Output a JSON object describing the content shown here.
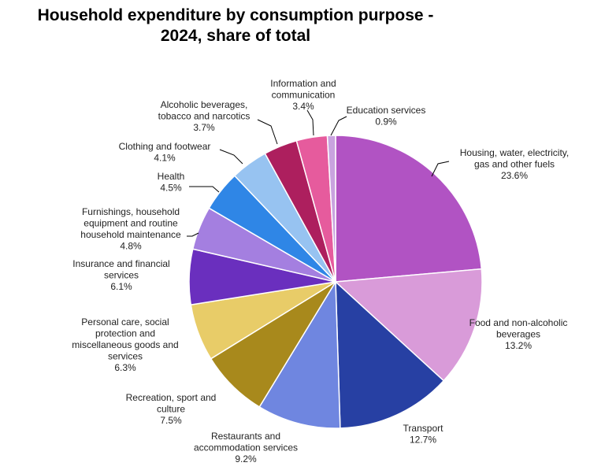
{
  "chart_data": {
    "type": "pie",
    "title": [
      "Household expenditure by consumption purpose -",
      "2024, share of total"
    ],
    "slices": [
      {
        "name": "Housing, water, electricity, gas and other fuels",
        "value": 23.6,
        "label_lines": [
          "Housing, water, electricity,",
          "gas and other fuels"
        ],
        "value_label": "23.6%",
        "color": "#b153c3"
      },
      {
        "name": "Food and non-alcoholic beverages",
        "value": 13.2,
        "label_lines": [
          "Food and non-alcoholic",
          "beverages"
        ],
        "value_label": "13.2%",
        "color": "#d99bd9"
      },
      {
        "name": "Transport",
        "value": 12.7,
        "label_lines": [
          "Transport"
        ],
        "value_label": "12.7%",
        "color": "#2740a3"
      },
      {
        "name": "Restaurants and accommodation services",
        "value": 9.2,
        "label_lines": [
          "Restaurants and",
          "accommodation services"
        ],
        "value_label": "9.2%",
        "color": "#6f86e0"
      },
      {
        "name": "Recreation, sport and culture",
        "value": 7.5,
        "label_lines": [
          "Recreation, sport and",
          "culture"
        ],
        "value_label": "7.5%",
        "color": "#a8891c"
      },
      {
        "name": "Personal care, social protection and miscellaneous goods and services",
        "value": 6.3,
        "label_lines": [
          "Personal care, social",
          "protection and",
          "miscellaneous goods and",
          "services"
        ],
        "value_label": "6.3%",
        "color": "#e8cc68"
      },
      {
        "name": "Insurance and financial services",
        "value": 6.1,
        "label_lines": [
          "Insurance and financial",
          "services"
        ],
        "value_label": "6.1%",
        "color": "#6a2fbe"
      },
      {
        "name": "Furnishings, household equipment and routine household maintenance",
        "value": 4.8,
        "label_lines": [
          "Furnishings, household",
          "equipment and routine",
          "household maintenance"
        ],
        "value_label": "4.8%",
        "color": "#a47fe0"
      },
      {
        "name": "Health",
        "value": 4.5,
        "label_lines": [
          "Health"
        ],
        "value_label": "4.5%",
        "color": "#2f86e6"
      },
      {
        "name": "Clothing and footwear",
        "value": 4.1,
        "label_lines": [
          "Clothing and footwear"
        ],
        "value_label": "4.1%",
        "color": "#97c3f1"
      },
      {
        "name": "Alcoholic beverages, tobacco and narcotics",
        "value": 3.7,
        "label_lines": [
          "Alcoholic beverages,",
          "tobacco and narcotics"
        ],
        "value_label": "3.7%",
        "color": "#ad1f5e"
      },
      {
        "name": "Information and communication",
        "value": 3.4,
        "label_lines": [
          "Information and",
          "communication"
        ],
        "value_label": "3.4%",
        "color": "#e65b9d"
      },
      {
        "name": "Education services",
        "value": 0.9,
        "label_lines": [
          "Education services"
        ],
        "value_label": "0.9%",
        "color": "#c9a3df"
      }
    ],
    "start_angle": "12 o'clock",
    "direction": "clockwise",
    "legend": "none"
  }
}
